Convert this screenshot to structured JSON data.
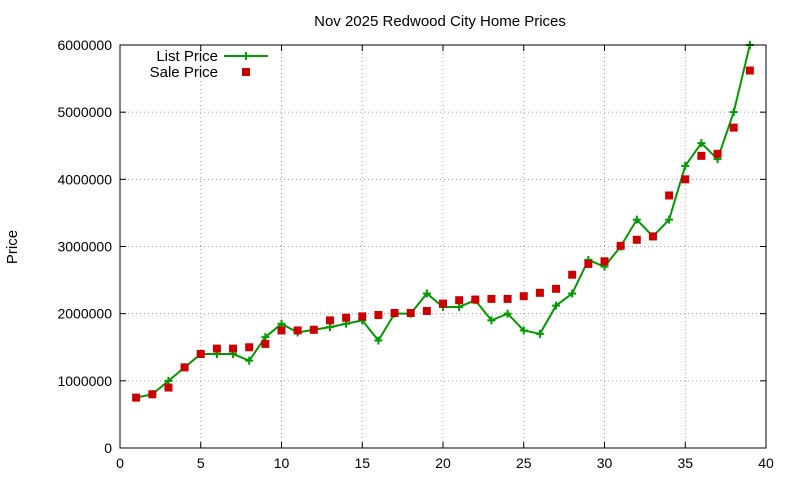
{
  "chart_data": {
    "type": "line",
    "title": "Nov 2025 Redwood City Home Prices",
    "xlabel": "",
    "ylabel": "Price",
    "xlim": [
      0,
      40
    ],
    "ylim": [
      0,
      6000000
    ],
    "x_ticks": [
      "0",
      "5",
      "10",
      "15",
      "20",
      "25",
      "30",
      "35",
      "40"
    ],
    "y_ticks": [
      "0",
      "1000000",
      "2000000",
      "3000000",
      "4000000",
      "5000000",
      "6000000"
    ],
    "grid": true,
    "legend_position": "top-left",
    "series": [
      {
        "name": "List Price",
        "style": "line-points",
        "color": "#009900",
        "x": [
          1,
          2,
          3,
          4,
          5,
          6,
          7,
          8,
          9,
          10,
          11,
          12,
          13,
          14,
          15,
          16,
          17,
          18,
          19,
          20,
          21,
          22,
          23,
          24,
          25,
          26,
          27,
          28,
          29,
          30,
          31,
          32,
          33,
          34,
          35,
          36,
          37,
          38,
          39
        ],
        "values": [
          750000,
          800000,
          1000000,
          1200000,
          1400000,
          1400000,
          1400000,
          1300000,
          1650000,
          1850000,
          1720000,
          1760000,
          1800000,
          1850000,
          1900000,
          1600000,
          2000000,
          2000000,
          2300000,
          2100000,
          2100000,
          2200000,
          1900000,
          2000000,
          1750000,
          1700000,
          2120000,
          2300000,
          2800000,
          2700000,
          3000000,
          3400000,
          3150000,
          3400000,
          4200000,
          4540000,
          4300000,
          5000000,
          6000000
        ]
      },
      {
        "name": "Sale Price",
        "style": "points",
        "color": "#cc0000",
        "x": [
          1,
          2,
          3,
          4,
          5,
          6,
          7,
          8,
          9,
          10,
          11,
          12,
          13,
          14,
          15,
          16,
          17,
          18,
          19,
          20,
          21,
          22,
          23,
          24,
          25,
          26,
          27,
          28,
          29,
          30,
          31,
          32,
          33,
          34,
          35,
          36,
          37,
          38,
          39
        ],
        "values": [
          750000,
          800000,
          900000,
          1200000,
          1400000,
          1480000,
          1480000,
          1500000,
          1550000,
          1750000,
          1750000,
          1760000,
          1900000,
          1940000,
          1960000,
          1980000,
          2010000,
          2010000,
          2040000,
          2150000,
          2200000,
          2210000,
          2220000,
          2220000,
          2260000,
          2310000,
          2370000,
          2580000,
          2740000,
          2780000,
          3010000,
          3100000,
          3150000,
          3760000,
          4000000,
          4350000,
          4380000,
          4770000,
          5620000
        ]
      }
    ]
  }
}
